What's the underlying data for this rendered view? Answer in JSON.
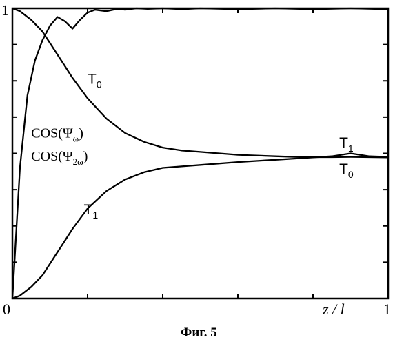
{
  "chart_data": {
    "type": "line",
    "xlabel": "z / l",
    "ylabel": "",
    "xlim": [
      0,
      1
    ],
    "ylim": [
      0,
      1
    ],
    "x_tick_labels": [
      "0",
      "1"
    ],
    "y_tick_labels": [
      "0",
      "1"
    ],
    "caption": "Фиг. 5",
    "series": [
      {
        "x": [
          0,
          0.02,
          0.05,
          0.08,
          0.1,
          0.13,
          0.16,
          0.2,
          0.25,
          0.3,
          0.35,
          0.4,
          0.45,
          0.5,
          0.6,
          0.7,
          0.75,
          0.8,
          0.85,
          0.9,
          0.95,
          1
        ],
        "y": [
          1,
          0.99,
          0.96,
          0.92,
          0.88,
          0.82,
          0.76,
          0.69,
          0.62,
          0.57,
          0.54,
          0.52,
          0.51,
          0.505,
          0.495,
          0.49,
          0.488,
          0.487,
          0.487,
          0.488,
          0.487,
          0.486
        ]
      },
      {
        "x": [
          0,
          0.02,
          0.05,
          0.08,
          0.1,
          0.13,
          0.16,
          0.2,
          0.25,
          0.3,
          0.35,
          0.4,
          0.45,
          0.5,
          0.6,
          0.7,
          0.75,
          0.8,
          0.85,
          0.9,
          0.95,
          1
        ],
        "y": [
          0,
          0.01,
          0.04,
          0.08,
          0.12,
          0.18,
          0.24,
          0.31,
          0.37,
          0.41,
          0.435,
          0.45,
          0.455,
          0.46,
          0.47,
          0.478,
          0.482,
          0.486,
          0.49,
          0.5,
          0.49,
          0.488
        ]
      },
      {
        "x": [
          0,
          0.02,
          0.04,
          0.06,
          0.08,
          0.1,
          0.12,
          0.14,
          0.16,
          0.18,
          0.2,
          0.22,
          0.25,
          0.28,
          0.3,
          0.33,
          0.36,
          0.4,
          0.45,
          0.5,
          0.6,
          0.7,
          0.8,
          0.9,
          1
        ],
        "y": [
          0,
          0.45,
          0.7,
          0.82,
          0.89,
          0.94,
          0.97,
          0.955,
          0.93,
          0.96,
          0.985,
          0.995,
          0.99,
          0.998,
          0.995,
          1,
          0.998,
          1,
          0.997,
          1,
          0.997,
          1,
          0.997,
          1,
          0.997
        ]
      }
    ],
    "annotations": [
      {
        "label": "T",
        "sub": "0",
        "x": 0.2,
        "y": 0.74
      },
      {
        "label": "T",
        "sub": "1",
        "x": 0.87,
        "y": 0.52
      },
      {
        "label": "T",
        "sub": "0",
        "x": 0.87,
        "y": 0.43
      },
      {
        "label": "T",
        "sub": "1",
        "x": 0.19,
        "y": 0.29
      },
      {
        "label": "COS(Ψ",
        "sub": "ω",
        "tail": ")",
        "x": 0.05,
        "y": 0.555
      },
      {
        "label": "COS(Ψ",
        "sub": "2ω",
        "tail": ")",
        "x": 0.05,
        "y": 0.475
      }
    ]
  }
}
